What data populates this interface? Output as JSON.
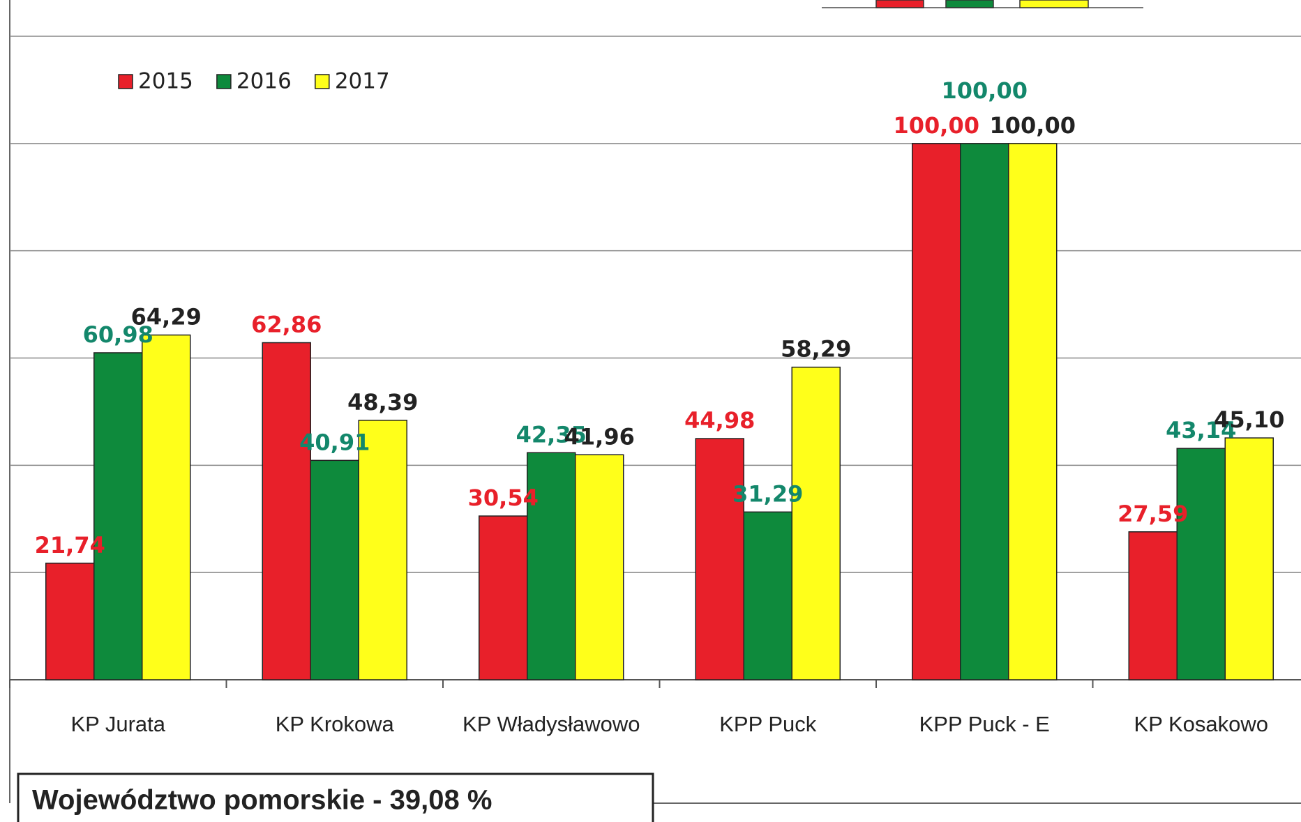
{
  "chart_data": {
    "type": "bar",
    "categories": [
      "KP Jurata",
      "KP Krokowa",
      "KP Władysławowo",
      "KPP Puck",
      "KPP Puck - E",
      "KP Kosakowo"
    ],
    "series": [
      {
        "name": "2015",
        "color": "#e8202a",
        "label_color": "#e8202a",
        "values": [
          21.74,
          62.86,
          30.54,
          44.98,
          100.0,
          27.59
        ],
        "value_labels": [
          "21,74",
          "62,86",
          "30,54",
          "44,98",
          "100,00",
          "27,59"
        ]
      },
      {
        "name": "2016",
        "color": "#0e8a3c",
        "label_color": "#13876b",
        "values": [
          60.98,
          40.91,
          42.35,
          31.29,
          100.0,
          43.14
        ],
        "value_labels": [
          "60,98",
          "40,91",
          "42,35",
          "31,29",
          "100,00",
          "43,14"
        ]
      },
      {
        "name": "2017",
        "color": "#ffff1a",
        "label_color": "#222222",
        "values": [
          64.29,
          48.39,
          41.96,
          58.29,
          100.0,
          45.1
        ],
        "value_labels": [
          "64,29",
          "48,39",
          "41,96",
          "58,29",
          "100,00",
          "45,10"
        ]
      }
    ],
    "ylim": [
      0,
      120
    ],
    "yticks": [
      0,
      20,
      40,
      60,
      80,
      100,
      120
    ],
    "grid": true,
    "legend": "top-left",
    "annotation": "Województwo pomorskie  - 39,08 %"
  }
}
